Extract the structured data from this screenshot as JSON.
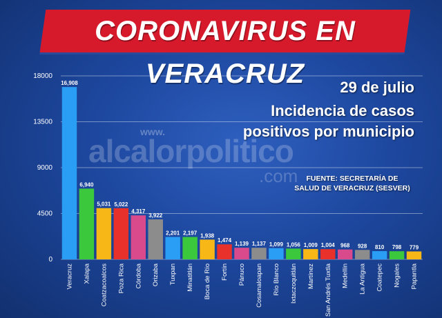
{
  "banner": {
    "title": "CORONAVIRUS EN VERACRUZ"
  },
  "info": {
    "date": "29 de julio",
    "subtitle_line1": "Incidencia de casos",
    "subtitle_line2": "positivos por municipio",
    "source_line1": "FUENTE: SECRETARÍA DE",
    "source_line2": "SALUD DE VERACRUZ (SESVER)"
  },
  "watermark": {
    "prefix": "www.",
    "brand": "alcalorpolitico",
    "suffix": ".com"
  },
  "colors": {
    "background": "#1d479e",
    "banner": "#d7192c",
    "text": "#ffffff",
    "grid": "#ffffff"
  },
  "chart_data": {
    "type": "bar",
    "ylim": [
      0,
      18000
    ],
    "yticks": [
      0,
      4500,
      9000,
      13500,
      18000
    ],
    "grid": true,
    "categories": [
      "Veracruz",
      "Xalapa",
      "Coatzacoalcos",
      "Poza Rica",
      "Córdoba",
      "Orizaba",
      "Tuxpan",
      "Minatitlán",
      "Boca de Río",
      "Fortín",
      "Pánuco",
      "Cosamaloapan",
      "Río Blanco",
      "Ixtaczoquitlán",
      "Martínez",
      "San Andrés Tuxtla",
      "Medellín",
      "La Antigua",
      "Coatepec",
      "Nogales",
      "Papantla"
    ],
    "values": [
      16908,
      6940,
      5031,
      5022,
      4317,
      3922,
      2201,
      2197,
      1938,
      1474,
      1139,
      1137,
      1099,
      1056,
      1009,
      1004,
      968,
      928,
      810,
      798,
      779
    ],
    "value_labels": [
      "16,908",
      "6,940",
      "5,031",
      "5,022",
      "4,317",
      "3,922",
      "2,201",
      "2,197",
      "1,938",
      "1,474",
      "1,139",
      "1,137",
      "1,099",
      "1,056",
      "1,009",
      "1,004",
      "968",
      "928",
      "810",
      "798",
      "779"
    ],
    "bar_colors": [
      "#2a9df4",
      "#3cc83c",
      "#f6b717",
      "#e8312a",
      "#d94a8c",
      "#8c8c8c",
      "#2a9df4",
      "#3cc83c",
      "#f6b717",
      "#e8312a",
      "#d94a8c",
      "#8c8c8c",
      "#2a9df4",
      "#3cc83c",
      "#f6b717",
      "#e8312a",
      "#d94a8c",
      "#8c8c8c",
      "#2a9df4",
      "#3cc83c",
      "#f6b717"
    ]
  }
}
